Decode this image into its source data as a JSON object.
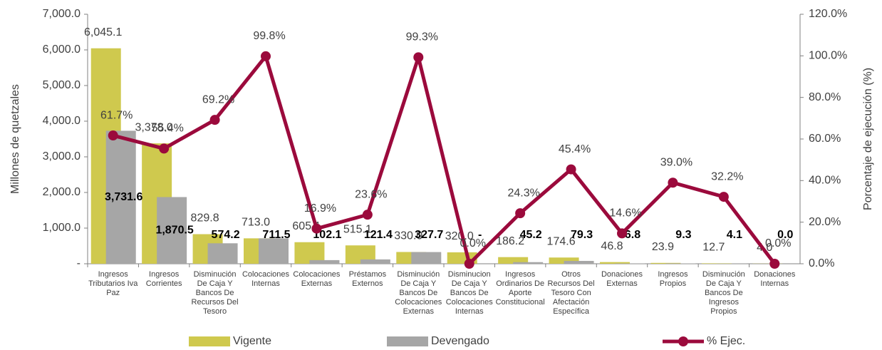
{
  "chart_data": {
    "type": "bar-line",
    "y_label": "Millones de quetzales",
    "y2_label": "Porcentaje de ejecución (%)",
    "categories": [
      [
        "Ingresos",
        "Tributarios Iva",
        "Paz"
      ],
      [
        "Ingresos",
        "Corrientes"
      ],
      [
        "Disminución",
        "De Caja Y",
        "Bancos De",
        "Recursos Del",
        "Tesoro"
      ],
      [
        "Colocaciones",
        "Internas"
      ],
      [
        "Colocaciones",
        "Externas"
      ],
      [
        "Préstamos",
        "Externos"
      ],
      [
        "Disminución",
        "De Caja Y",
        "Bancos De",
        "Colocaciones",
        "Externas"
      ],
      [
        "Disminucion",
        "De Caja Y",
        "Bancos De",
        "Colocaciones",
        "Internas"
      ],
      [
        "Ingresos",
        "Ordinarios De",
        "Aporte",
        "Constitucional"
      ],
      [
        "Otros",
        "Recursos Del",
        "Tesoro Con",
        "Afectación",
        "Específica"
      ],
      [
        "Donaciones",
        "Externas"
      ],
      [
        "Ingresos",
        "Propios"
      ],
      [
        "Disminución",
        "De Caja Y",
        "Bancos De",
        "Ingresos",
        "Propios"
      ],
      [
        "Donaciones",
        "Internas"
      ]
    ],
    "series": [
      {
        "name": "Vigente",
        "color": "#cfc94e",
        "kind": "bar",
        "values": [
          6045.1,
          3378.0,
          829.8,
          713.0,
          605.1,
          515.1,
          330.0,
          320.0,
          186.2,
          174.6,
          46.8,
          23.9,
          12.7,
          4.0
        ],
        "value_labels": [
          "6,045.1",
          "3,378.0",
          "829.8",
          "713.0",
          "605.1",
          "515.1",
          "330.0",
          "320.0",
          "186.2",
          "174.6",
          "46.8",
          "23.9",
          "12.7",
          "4.0"
        ]
      },
      {
        "name": "Devengado",
        "color": "#a6a6a6",
        "kind": "bar",
        "values": [
          3731.6,
          1870.5,
          574.2,
          711.5,
          102.1,
          121.4,
          327.7,
          0,
          45.2,
          79.3,
          6.8,
          9.3,
          4.1,
          0.0
        ],
        "value_labels": [
          "3,731.6",
          "1,870.5",
          "574.2",
          "711.5",
          "102.1",
          "121.4",
          "327.7",
          "-",
          "45.2",
          "79.3",
          "6.8",
          "9.3",
          "4.1",
          "0.0"
        ]
      },
      {
        "name": "% Ejec.",
        "color": "#9b0a3c",
        "kind": "line",
        "axis": "y2",
        "values": [
          61.7,
          55.4,
          69.2,
          99.8,
          16.9,
          23.6,
          99.3,
          0.0,
          24.3,
          45.4,
          14.6,
          39.0,
          32.2,
          0.0
        ],
        "value_labels": [
          "61.7%",
          "55.4%",
          "69.2%",
          "99.8%",
          "16.9%",
          "23.6%",
          "99.3%",
          "0.0%",
          "24.3%",
          "45.4%",
          "14.6%",
          "39.0%",
          "32.2%",
          "0.0%"
        ]
      }
    ],
    "ylim": [
      0,
      7000
    ],
    "yticks": [
      {
        "value": 0,
        "label": "-"
      },
      {
        "value": 1000,
        "label": "1,000.0"
      },
      {
        "value": 2000,
        "label": "2,000.0"
      },
      {
        "value": 3000,
        "label": "3,000.0"
      },
      {
        "value": 4000,
        "label": "4,000.0"
      },
      {
        "value": 5000,
        "label": "5,000.0"
      },
      {
        "value": 6000,
        "label": "6,000.0"
      },
      {
        "value": 7000,
        "label": "7,000.0"
      }
    ],
    "y2lim": [
      0,
      120
    ],
    "y2ticks": [
      {
        "value": 0,
        "label": "0.0%"
      },
      {
        "value": 20,
        "label": "20.0%"
      },
      {
        "value": 40,
        "label": "40.0%"
      },
      {
        "value": 60,
        "label": "60.0%"
      },
      {
        "value": 80,
        "label": "80.0%"
      },
      {
        "value": 100,
        "label": "100.0%"
      },
      {
        "value": 120,
        "label": "120.0%"
      }
    ],
    "legend": "bottom"
  }
}
